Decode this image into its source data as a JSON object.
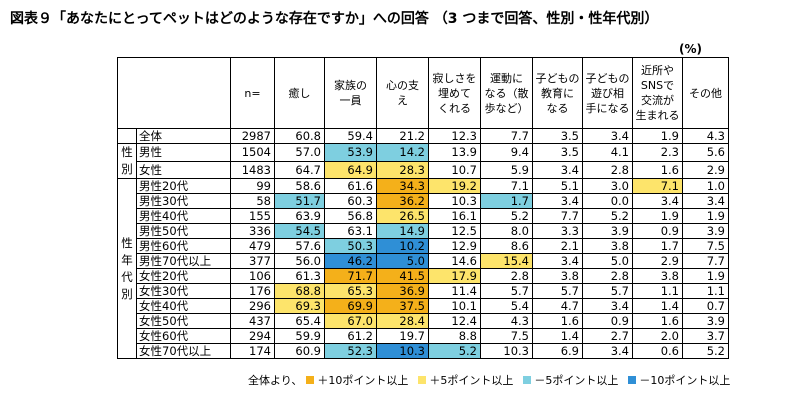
{
  "title": "図表９「あなたにとってペットはどのような存在ですか」への回答 （3 つまで回答、性別・性年代別）",
  "unit": "(%)",
  "chart_data": {
    "type": "table",
    "columns": [
      "n=",
      "癒し",
      "家族の一員",
      "心の支え",
      "寂しさを埋めてくれる",
      "運動になる（散歩など）",
      "子どもの教育になる",
      "子どもの遊び相手になる",
      "近所やSNSで交流が生まれる",
      "その他"
    ],
    "column_header_lines": [
      [
        "n="
      ],
      [
        "癒し"
      ],
      [
        "家族の",
        "一員"
      ],
      [
        "心の支",
        "え"
      ],
      [
        "寂しさを",
        "埋めて",
        "くれる"
      ],
      [
        "運動に",
        "なる（散",
        "歩など）"
      ],
      [
        "子どもの",
        "教育に",
        "なる"
      ],
      [
        "子どもの",
        "遊び相",
        "手になる"
      ],
      [
        "近所や",
        "SNSで",
        "交流が",
        "生まれる"
      ],
      [
        "その他"
      ]
    ],
    "groups": [
      {
        "label": "",
        "rows": 1
      },
      {
        "label": "性別",
        "rows": 2
      },
      {
        "label": "性年代別",
        "rows": 12
      }
    ],
    "rows": [
      {
        "label": "全体",
        "values": [
          "2987",
          "60.8",
          "59.4",
          "21.2",
          "12.3",
          "7.7",
          "3.5",
          "3.4",
          "1.9",
          "4.3"
        ],
        "hl": [
          "",
          "",
          "",
          "",
          "",
          "",
          "",
          "",
          "",
          ""
        ]
      },
      {
        "label": "男性",
        "values": [
          "1504",
          "57.0",
          "53.9",
          "14.2",
          "13.9",
          "9.4",
          "3.5",
          "4.1",
          "2.3",
          "5.6"
        ],
        "hl": [
          "",
          "",
          "m5",
          "m5",
          "",
          "",
          "",
          "",
          "",
          ""
        ]
      },
      {
        "label": "女性",
        "values": [
          "1483",
          "64.7",
          "64.9",
          "28.3",
          "10.7",
          "5.9",
          "3.4",
          "2.8",
          "1.6",
          "2.9"
        ],
        "hl": [
          "",
          "",
          "p5",
          "p5",
          "",
          "",
          "",
          "",
          "",
          ""
        ]
      },
      {
        "label": "男性20代",
        "values": [
          "99",
          "58.6",
          "61.6",
          "34.3",
          "19.2",
          "7.1",
          "5.1",
          "3.0",
          "7.1",
          "1.0"
        ],
        "hl": [
          "",
          "",
          "",
          "p10",
          "p5",
          "",
          "",
          "",
          "p5",
          ""
        ]
      },
      {
        "label": "男性30代",
        "values": [
          "58",
          "51.7",
          "60.3",
          "36.2",
          "10.3",
          "1.7",
          "3.4",
          "0.0",
          "3.4",
          "3.4"
        ],
        "hl": [
          "",
          "m5",
          "",
          "p10",
          "",
          "m5",
          "",
          "",
          "",
          ""
        ]
      },
      {
        "label": "男性40代",
        "values": [
          "155",
          "63.9",
          "56.8",
          "26.5",
          "16.1",
          "5.2",
          "7.7",
          "5.2",
          "1.9",
          "1.9"
        ],
        "hl": [
          "",
          "",
          "",
          "p5",
          "",
          "",
          "",
          "",
          "",
          ""
        ]
      },
      {
        "label": "男性50代",
        "values": [
          "336",
          "54.5",
          "63.1",
          "14.9",
          "12.5",
          "8.0",
          "3.3",
          "3.9",
          "0.9",
          "3.9"
        ],
        "hl": [
          "",
          "m5",
          "",
          "m5",
          "",
          "",
          "",
          "",
          "",
          ""
        ]
      },
      {
        "label": "男性60代",
        "values": [
          "479",
          "57.6",
          "50.3",
          "10.2",
          "12.9",
          "8.6",
          "2.1",
          "3.8",
          "1.7",
          "7.5"
        ],
        "hl": [
          "",
          "",
          "m5",
          "m10",
          "",
          "",
          "",
          "",
          "",
          ""
        ]
      },
      {
        "label": "男性70代以上",
        "values": [
          "377",
          "56.0",
          "46.2",
          "5.0",
          "14.6",
          "15.4",
          "3.4",
          "5.0",
          "2.9",
          "7.7"
        ],
        "hl": [
          "",
          "",
          "m10",
          "m10",
          "",
          "p5",
          "",
          "",
          "",
          ""
        ]
      },
      {
        "label": "女性20代",
        "values": [
          "106",
          "61.3",
          "71.7",
          "41.5",
          "17.9",
          "2.8",
          "3.8",
          "2.8",
          "3.8",
          "1.9"
        ],
        "hl": [
          "",
          "",
          "p10",
          "p10",
          "p5",
          "",
          "",
          "",
          "",
          ""
        ]
      },
      {
        "label": "女性30代",
        "values": [
          "176",
          "68.8",
          "65.3",
          "36.9",
          "11.4",
          "5.7",
          "5.7",
          "5.7",
          "1.1",
          "1.1"
        ],
        "hl": [
          "",
          "p5",
          "p5",
          "p10",
          "",
          "",
          "",
          "",
          "",
          ""
        ]
      },
      {
        "label": "女性40代",
        "values": [
          "296",
          "69.3",
          "69.9",
          "37.5",
          "10.1",
          "5.4",
          "4.7",
          "3.4",
          "1.4",
          "0.7"
        ],
        "hl": [
          "",
          "p5",
          "p10",
          "p10",
          "",
          "",
          "",
          "",
          "",
          ""
        ]
      },
      {
        "label": "女性50代",
        "values": [
          "437",
          "65.4",
          "67.0",
          "28.4",
          "12.4",
          "4.3",
          "1.6",
          "0.9",
          "1.6",
          "3.9"
        ],
        "hl": [
          "",
          "",
          "p5",
          "p5",
          "",
          "",
          "",
          "",
          "",
          ""
        ]
      },
      {
        "label": "女性60代",
        "values": [
          "294",
          "59.9",
          "61.2",
          "19.7",
          "8.8",
          "7.5",
          "1.4",
          "2.7",
          "2.0",
          "3.7"
        ],
        "hl": [
          "",
          "",
          "",
          "",
          "",
          "",
          "",
          "",
          "",
          ""
        ]
      },
      {
        "label": "女性70代以上",
        "values": [
          "174",
          "60.9",
          "52.3",
          "10.3",
          "5.2",
          "10.3",
          "6.9",
          "3.4",
          "0.6",
          "5.2"
        ],
        "hl": [
          "",
          "",
          "m5",
          "m10",
          "m5",
          "",
          "",
          "",
          "",
          ""
        ]
      }
    ],
    "legend": {
      "prefix": "全体より、",
      "items": [
        {
          "key": "p10",
          "label": "＋10ポイント以上",
          "color": "#f4b01a"
        },
        {
          "key": "p5",
          "label": "＋5ポイント以上",
          "color": "#fde46b"
        },
        {
          "key": "m5",
          "label": "－5ポイント以上",
          "color": "#7ecfe0"
        },
        {
          "key": "m10",
          "label": "－10ポイント以上",
          "color": "#2f8fd6"
        }
      ]
    }
  }
}
